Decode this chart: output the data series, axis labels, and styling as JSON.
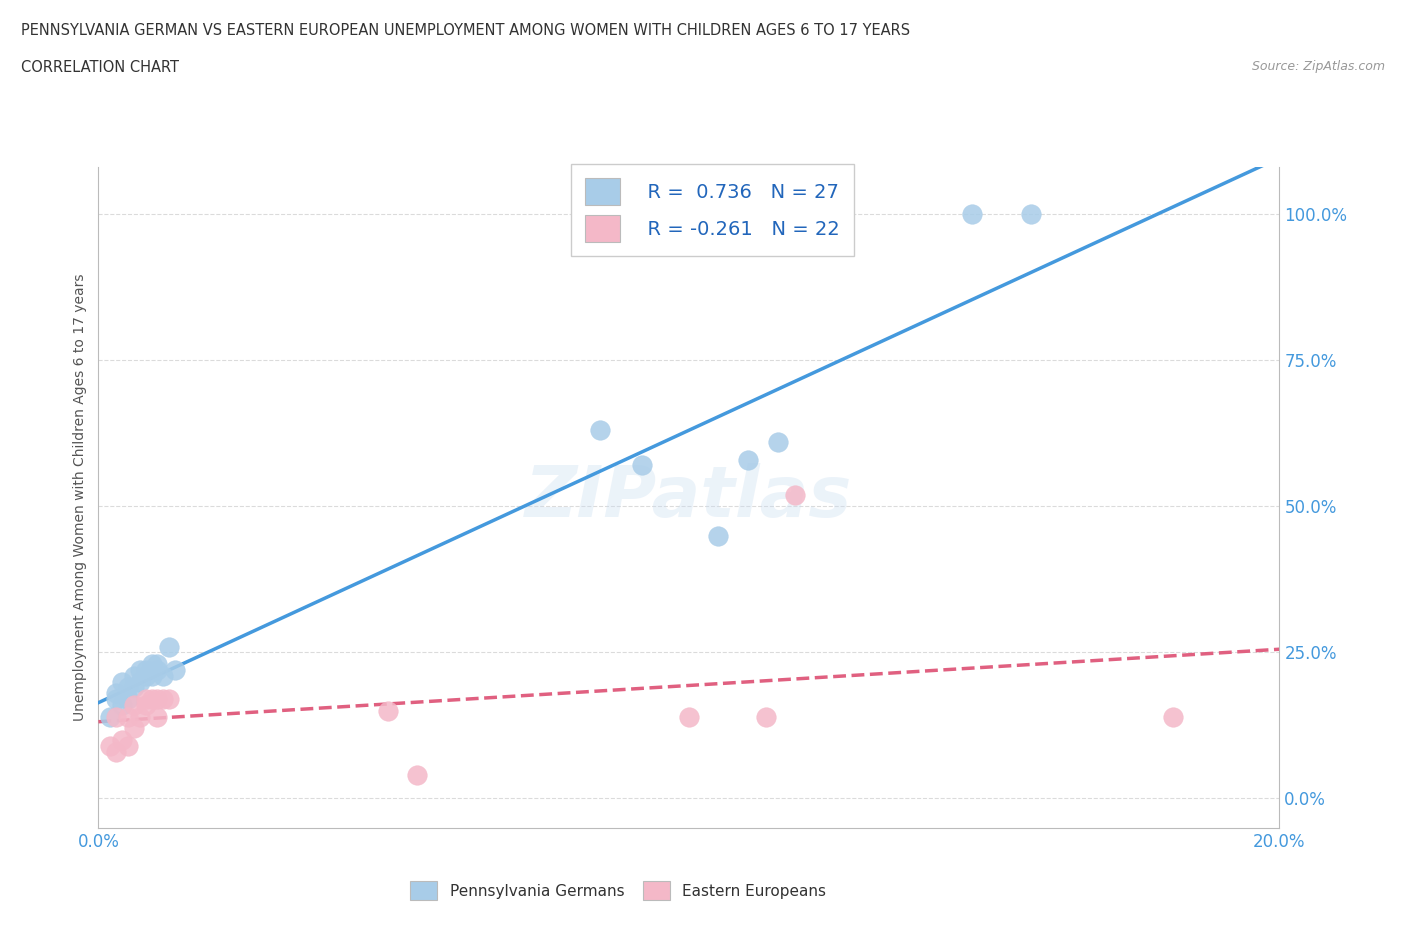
{
  "title": "PENNSYLVANIA GERMAN VS EASTERN EUROPEAN UNEMPLOYMENT AMONG WOMEN WITH CHILDREN AGES 6 TO 17 YEARS",
  "subtitle": "CORRELATION CHART",
  "source": "Source: ZipAtlas.com",
  "ylabel": "Unemployment Among Women with Children Ages 6 to 17 years",
  "xlim": [
    0.0,
    0.2
  ],
  "ylim": [
    -0.05,
    1.08
  ],
  "ytick_labels": [
    "0.0%",
    "25.0%",
    "50.0%",
    "75.0%",
    "100.0%"
  ],
  "ytick_values": [
    0.0,
    0.25,
    0.5,
    0.75,
    1.0
  ],
  "blue_R": 0.736,
  "blue_N": 27,
  "pink_R": -0.261,
  "pink_N": 22,
  "blue_color": "#a8cce8",
  "pink_color": "#f4b8c8",
  "blue_line_color": "#4499dd",
  "pink_line_color": "#e06080",
  "background_color": "#ffffff",
  "grid_color": "#cccccc",
  "blue_x": [
    0.002,
    0.003,
    0.003,
    0.004,
    0.004,
    0.005,
    0.005,
    0.006,
    0.006,
    0.007,
    0.007,
    0.008,
    0.008,
    0.009,
    0.009,
    0.01,
    0.01,
    0.011,
    0.012,
    0.013,
    0.085,
    0.092,
    0.105,
    0.11,
    0.115,
    0.148,
    0.158
  ],
  "blue_y": [
    0.14,
    0.17,
    0.18,
    0.16,
    0.2,
    0.17,
    0.19,
    0.19,
    0.21,
    0.22,
    0.2,
    0.22,
    0.21,
    0.21,
    0.23,
    0.22,
    0.23,
    0.21,
    0.26,
    0.22,
    0.63,
    0.57,
    0.45,
    0.58,
    0.61,
    1.0,
    1.0
  ],
  "pink_x": [
    0.002,
    0.003,
    0.003,
    0.004,
    0.005,
    0.005,
    0.006,
    0.006,
    0.007,
    0.008,
    0.008,
    0.009,
    0.01,
    0.01,
    0.011,
    0.012,
    0.049,
    0.054,
    0.1,
    0.113,
    0.118,
    0.182
  ],
  "pink_y": [
    0.09,
    0.08,
    0.14,
    0.1,
    0.09,
    0.14,
    0.12,
    0.16,
    0.14,
    0.16,
    0.17,
    0.17,
    0.14,
    0.17,
    0.17,
    0.17,
    0.15,
    0.04,
    0.14,
    0.14,
    0.52,
    0.14
  ]
}
